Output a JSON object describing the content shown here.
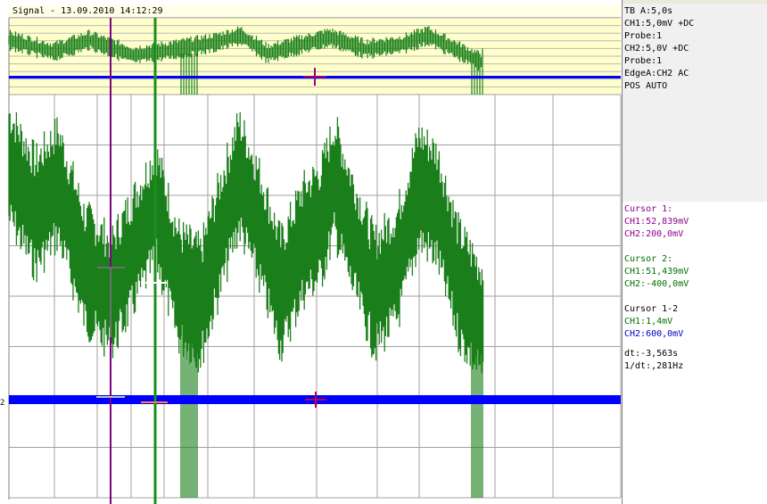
{
  "title": "Signal - 13.09.2010 14:12:29",
  "ref_marker": "2",
  "colors": {
    "ch1": "#1a7f1a",
    "ch2": "#0000ff",
    "cursor1": "#800080",
    "cursor2": "#1a8f1a",
    "overview_bg": "#ffffcc",
    "grid": "#a0a0a0"
  },
  "settings": {
    "timebase": "TB A:5,0s",
    "ch1": "CH1:5,0mV +DC",
    "ch1_probe": "Probe:1",
    "ch2": "CH2:5,0V +DC",
    "ch2_probe": "Probe:1",
    "trigger": "EdgeA:CH2 AC",
    "position": "POS AUTO"
  },
  "cursors": {
    "c1_title": "Cursor 1:",
    "c1_ch1": "CH1:52,839mV",
    "c1_ch2": "CH2:200,0mV",
    "c2_title": "Cursor 2:",
    "c2_ch1": "CH1:51,439mV",
    "c2_ch2": "CH2:-400,0mV",
    "d_title": "Cursor 1-2",
    "d_ch1": "CH1:1,4mV",
    "d_ch2": "CH2:600,0mV",
    "dt": "dt:-3,563s",
    "inv_dt": "1/dt:,281Hz"
  }
}
